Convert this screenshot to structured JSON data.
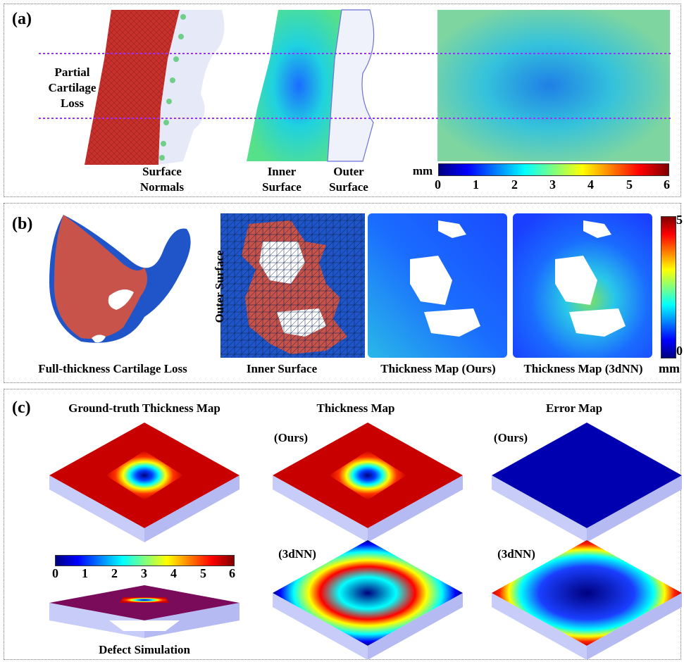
{
  "panel_a": {
    "label": "(a)",
    "partial_loss": "Partial\nCartilage\nLoss",
    "surface_normals": "Surface\nNormals",
    "inner_surface": "Inner\nSurface",
    "outer_surface": "Outer\nSurface",
    "unit": "mm",
    "colorbar_ticks": [
      "0",
      "1",
      "2",
      "3",
      "4",
      "5",
      "6"
    ]
  },
  "panel_b": {
    "label": "(b)",
    "full_loss": "Full-thickness Cartilage Loss",
    "outer_surface": "Outer Surface",
    "inner_surface": "Inner Surface",
    "thickness_ours": "Thickness Map (Ours)",
    "thickness_3dnn": "Thickness Map (3dNN)",
    "colorbar_max": "5",
    "colorbar_min": "0",
    "unit": "mm"
  },
  "panel_c": {
    "label": "(c)",
    "gt_title": "Ground-truth Thickness Map",
    "thickness_title": "Thickness Map",
    "error_title": "Error Map",
    "ours": "(Ours)",
    "nn": "(3dNN)",
    "defect": "Defect Simulation",
    "colorbar_ticks": [
      "0",
      "1",
      "2",
      "3",
      "4",
      "5",
      "6"
    ]
  },
  "colors": {
    "frame": "#777777",
    "guide_line": "#9b30ff",
    "mesh_red": "#c8302c",
    "mesh_blue": "#1f55c8"
  }
}
